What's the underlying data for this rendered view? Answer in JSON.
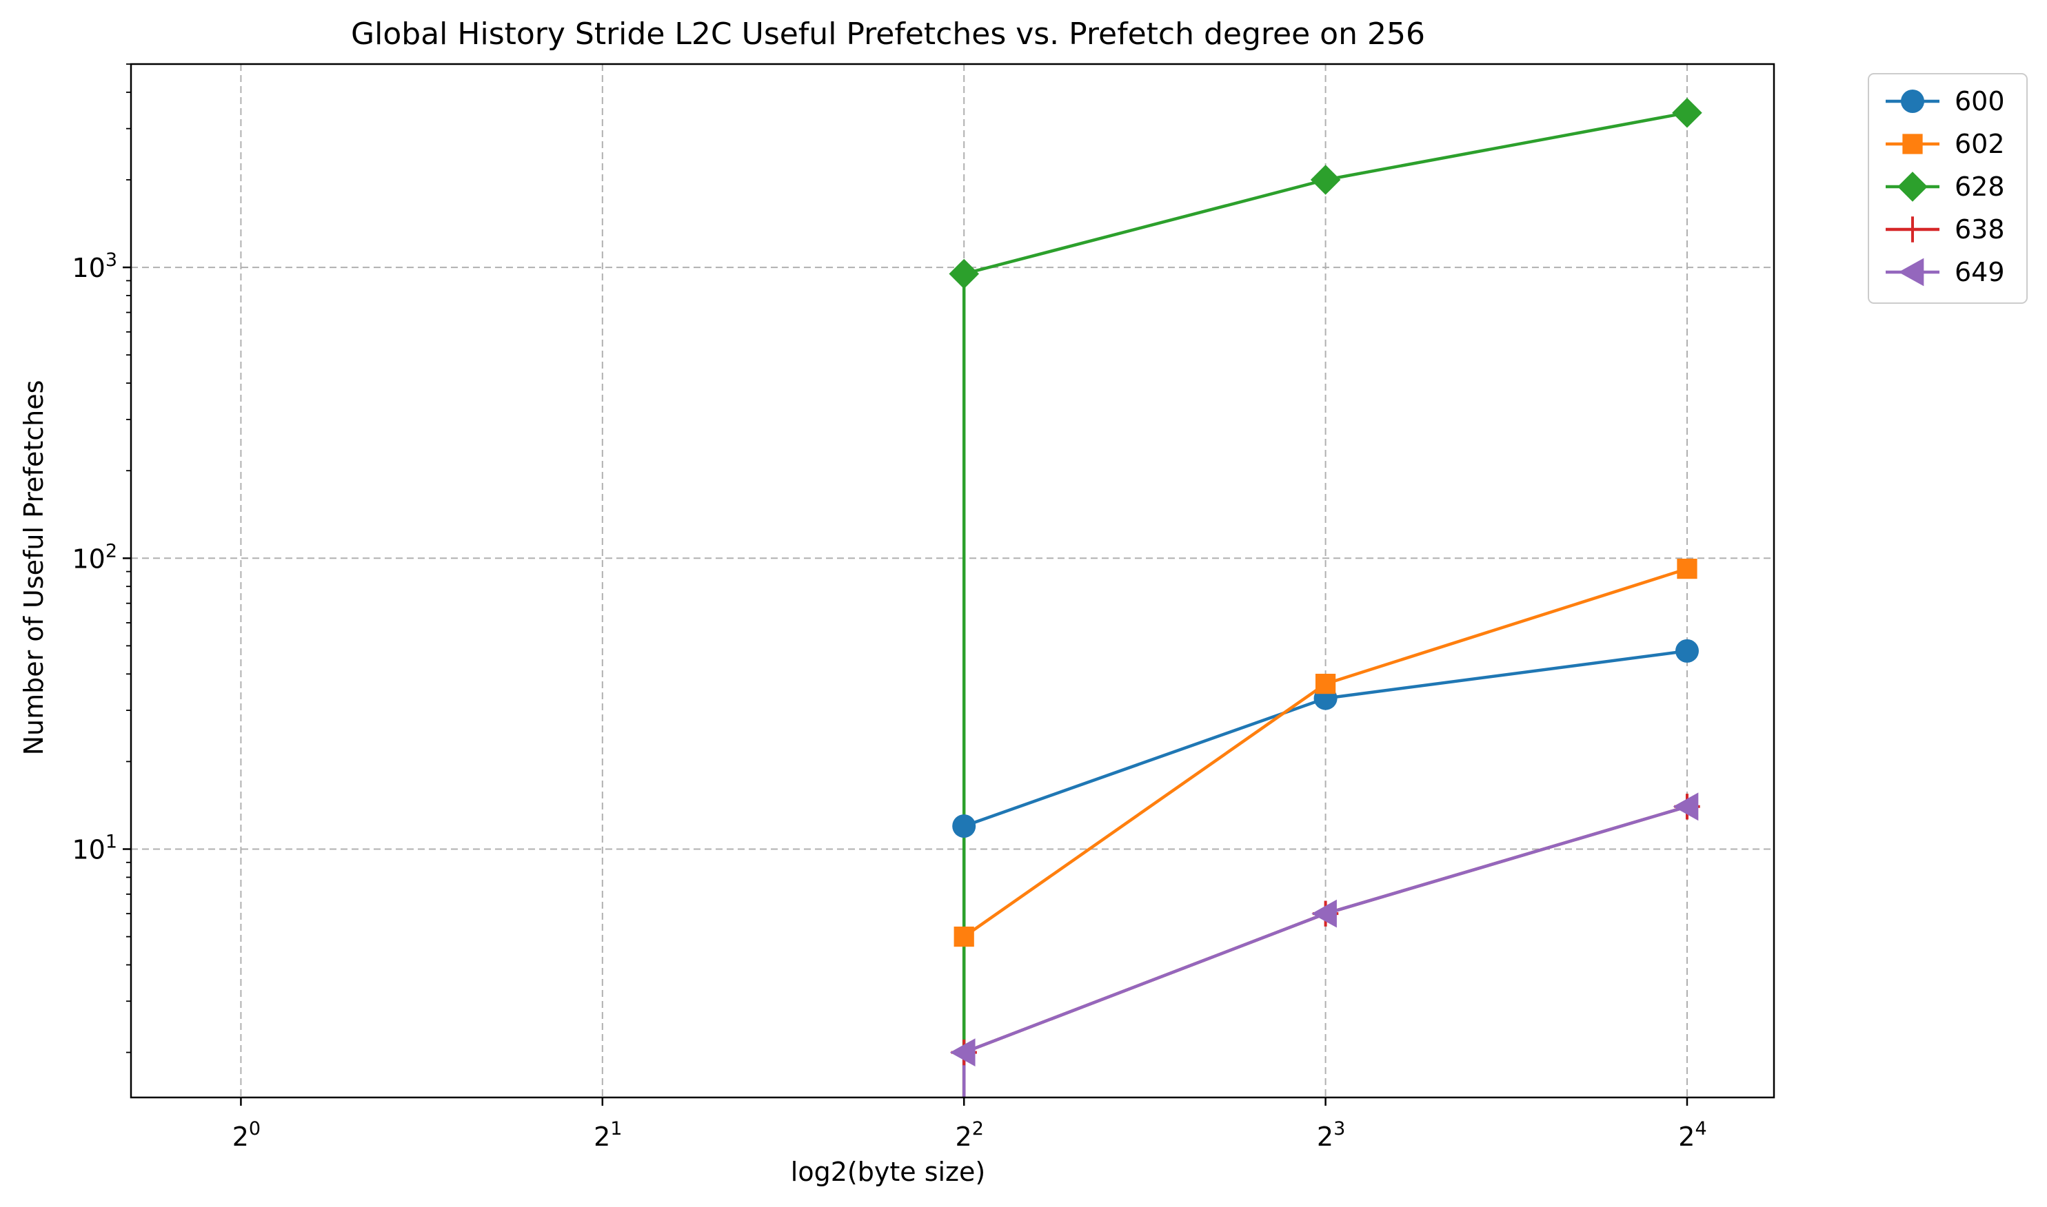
{
  "chart_data": {
    "type": "line",
    "title": "Global History Stride L2C Useful Prefetches vs. Prefetch degree on 256",
    "xlabel": "log2(byte size)",
    "ylabel": "Number of Useful Prefetches",
    "xscale": "log2",
    "yscale": "log10",
    "xlim": [
      0.81,
      18.9
    ],
    "ylim": [
      1.4,
      5000
    ],
    "x_ticks": [
      {
        "value": 1,
        "base": "2",
        "exp": "0"
      },
      {
        "value": 2,
        "base": "2",
        "exp": "1"
      },
      {
        "value": 4,
        "base": "2",
        "exp": "2"
      },
      {
        "value": 8,
        "base": "2",
        "exp": "3"
      },
      {
        "value": 16,
        "base": "2",
        "exp": "4"
      }
    ],
    "y_ticks": [
      {
        "value": 10,
        "base": "10",
        "exp": "1"
      },
      {
        "value": 100,
        "base": "10",
        "exp": "2"
      },
      {
        "value": 1000,
        "base": "10",
        "exp": "3"
      }
    ],
    "grid": true,
    "legend_position": "outside-top-right",
    "series": [
      {
        "name": "600",
        "color": "#1f77b4",
        "marker": "circle",
        "x": [
          4,
          4,
          8,
          16
        ],
        "y": [
          null,
          12,
          33,
          48
        ]
      },
      {
        "name": "602",
        "color": "#ff7f0e",
        "marker": "square",
        "x": [
          4,
          4,
          8,
          16
        ],
        "y": [
          null,
          5,
          37,
          92
        ]
      },
      {
        "name": "628",
        "color": "#2ca02c",
        "marker": "diamond",
        "x": [
          4,
          4,
          8,
          16
        ],
        "y": [
          null,
          950,
          2000,
          3400
        ]
      },
      {
        "name": "638",
        "color": "#d62728",
        "marker": "plus",
        "x": [
          4,
          4,
          8,
          16
        ],
        "y": [
          null,
          2,
          6,
          14
        ]
      },
      {
        "name": "649",
        "color": "#9467bd",
        "marker": "triangle-left",
        "x": [
          4,
          4,
          8,
          16
        ],
        "y": [
          null,
          2,
          6,
          14
        ]
      }
    ]
  }
}
